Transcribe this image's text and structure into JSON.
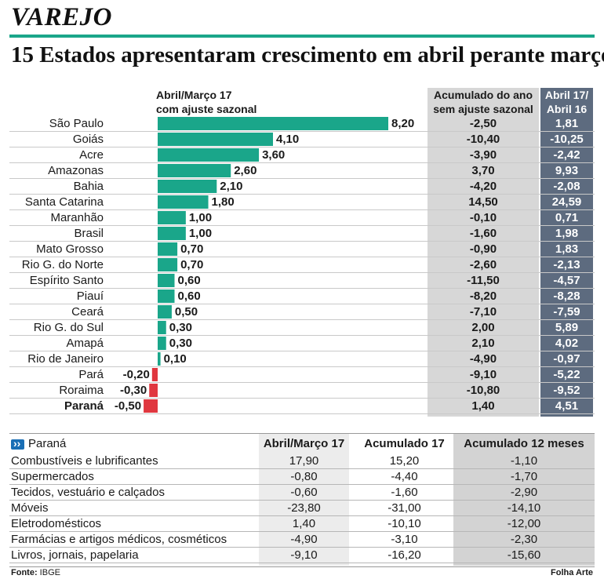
{
  "kicker": "VAREJO",
  "headline": "15 Estados apresentaram crescimento em abril perante março",
  "columns": {
    "mm_line1": "Abril/Março 17",
    "mm_line2": "com ajuste sazonal",
    "acc_line1": "Acumulado do ano",
    "acc_line2": "sem ajuste sazonal",
    "yoy_line1": "Abril 17/",
    "yoy_line2": "Abril 16"
  },
  "colors": {
    "positive": "#1aa68a",
    "negative": "#e0373f",
    "accent_rule": "#1aa68a",
    "yoy_bg": "#5d6b7f",
    "acc_bg": "#d7d7d7"
  },
  "chart_data": {
    "type": "bar",
    "orientation": "horizontal",
    "categories": [
      "São Paulo",
      "Goiás",
      "Acre",
      "Amazonas",
      "Bahia",
      "Santa Catarina",
      "Maranhão",
      "Brasil",
      "Mato Grosso",
      "Rio G. do Norte",
      "Espírito Santo",
      "Piauí",
      "Ceará",
      "Rio G. do Sul",
      "Amapá",
      "Rio de Janeiro",
      "Pará",
      "Roraima",
      "Paraná"
    ],
    "values": [
      8.2,
      4.1,
      3.6,
      2.6,
      2.1,
      1.8,
      1.0,
      1.0,
      0.7,
      0.7,
      0.6,
      0.6,
      0.5,
      0.3,
      0.3,
      0.1,
      -0.2,
      -0.3,
      -0.5
    ],
    "value_labels": [
      "8,20",
      "4,10",
      "3,60",
      "2,60",
      "2,10",
      "1,80",
      "1,00",
      "1,00",
      "0,70",
      "0,70",
      "0,60",
      "0,60",
      "0,50",
      "0,30",
      "0,30",
      "0,10",
      "-0,20",
      "-0,30",
      "-0,50"
    ],
    "xlim": [
      -0.5,
      8.2
    ],
    "highlight": "Paraná"
  },
  "rows": [
    {
      "name": "São Paulo",
      "acc": "-2,50",
      "yoy": "1,81"
    },
    {
      "name": "Goiás",
      "acc": "-10,40",
      "yoy": "-10,25"
    },
    {
      "name": "Acre",
      "acc": "-3,90",
      "yoy": "-2,42"
    },
    {
      "name": "Amazonas",
      "acc": "3,70",
      "yoy": "9,93"
    },
    {
      "name": "Bahia",
      "acc": "-4,20",
      "yoy": "-2,08"
    },
    {
      "name": "Santa Catarina",
      "acc": "14,50",
      "yoy": "24,59"
    },
    {
      "name": "Maranhão",
      "acc": "-0,10",
      "yoy": "0,71"
    },
    {
      "name": "Brasil",
      "acc": "-1,60",
      "yoy": "1,98"
    },
    {
      "name": "Mato Grosso",
      "acc": "-0,90",
      "yoy": "1,83"
    },
    {
      "name": "Rio G. do Norte",
      "acc": "-2,60",
      "yoy": "-2,13"
    },
    {
      "name": "Espírito Santo",
      "acc": "-11,50",
      "yoy": "-4,57"
    },
    {
      "name": "Piauí",
      "acc": "-8,20",
      "yoy": "-8,28"
    },
    {
      "name": "Ceará",
      "acc": "-7,10",
      "yoy": "-7,59"
    },
    {
      "name": "Rio G. do Sul",
      "acc": "2,00",
      "yoy": "5,89"
    },
    {
      "name": "Amapá",
      "acc": "2,10",
      "yoy": "4,02"
    },
    {
      "name": "Rio de Janeiro",
      "acc": "-4,90",
      "yoy": "-0,97"
    },
    {
      "name": "Pará",
      "acc": "-9,10",
      "yoy": "-5,22"
    },
    {
      "name": "Roraima",
      "acc": "-10,80",
      "yoy": "-9,52"
    },
    {
      "name": "Paraná",
      "acc": "1,40",
      "yoy": "4,51"
    }
  ],
  "parana": {
    "title": "Paraná",
    "headers": [
      "Abril/Março 17",
      "Acumulado 17",
      "Acumulado 12 meses"
    ],
    "rows": [
      {
        "label": "Combustíveis e lubrificantes",
        "c1": "17,90",
        "c2": "15,20",
        "c3": "-1,10"
      },
      {
        "label": "Supermercados",
        "c1": "-0,80",
        "c2": "-4,40",
        "c3": "-1,70"
      },
      {
        "label": "Tecidos, vestuário e calçados",
        "c1": "-0,60",
        "c2": "-1,60",
        "c3": "-2,90"
      },
      {
        "label": "Móveis",
        "c1": "-23,80",
        "c2": "-31,00",
        "c3": "-14,10"
      },
      {
        "label": "Eletrodomésticos",
        "c1": "1,40",
        "c2": "-10,10",
        "c3": "-12,00"
      },
      {
        "label": "Farmácias e artigos médicos, cosméticos",
        "c1": "-4,90",
        "c2": "-3,10",
        "c3": "-2,30"
      },
      {
        "label": "Livros, jornais, papelaria",
        "c1": "-9,10",
        "c2": "-16,20",
        "c3": "-15,60"
      }
    ]
  },
  "footer": {
    "source_label": "Fonte:",
    "source": "IBGE",
    "credit": "Folha Arte"
  }
}
